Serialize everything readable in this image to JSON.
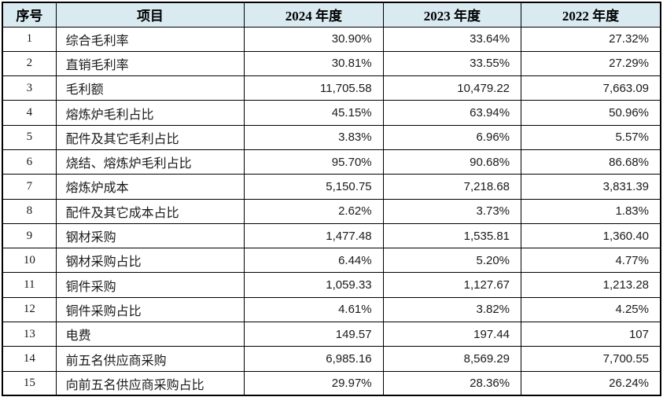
{
  "table": {
    "title_semantic": "margin-and-procurement-comparison-table",
    "headers": [
      {
        "label": "序号"
      },
      {
        "label": "项目"
      },
      {
        "label": "2024 年度"
      },
      {
        "label": "2023 年度"
      },
      {
        "label": "2022 年度"
      }
    ],
    "rows": [
      {
        "index": "1",
        "item": "综合毛利率",
        "y2024": "30.90%",
        "y2023": "33.64%",
        "y2022": "27.32%"
      },
      {
        "index": "2",
        "item": "直销毛利率",
        "y2024": "30.81%",
        "y2023": "33.55%",
        "y2022": "27.29%"
      },
      {
        "index": "3",
        "item": "毛利额",
        "y2024": "11,705.58",
        "y2023": "10,479.22",
        "y2022": "7,663.09"
      },
      {
        "index": "4",
        "item": "熔炼炉毛利占比",
        "y2024": "45.15%",
        "y2023": "63.94%",
        "y2022": "50.96%"
      },
      {
        "index": "5",
        "item": "配件及其它毛利占比",
        "y2024": "3.83%",
        "y2023": "6.96%",
        "y2022": "5.57%"
      },
      {
        "index": "6",
        "item": "烧结、熔炼炉毛利占比",
        "y2024": "95.70%",
        "y2023": "90.68%",
        "y2022": "86.68%"
      },
      {
        "index": "7",
        "item": "熔炼炉成本",
        "y2024": "5,150.75",
        "y2023": "7,218.68",
        "y2022": "3,831.39"
      },
      {
        "index": "8",
        "item": "配件及其它成本占比",
        "y2024": "2.62%",
        "y2023": "3.73%",
        "y2022": "1.83%"
      },
      {
        "index": "9",
        "item": "钢材采购",
        "y2024": "1,477.48",
        "y2023": "1,535.81",
        "y2022": "1,360.40"
      },
      {
        "index": "10",
        "item": "钢材采购占比",
        "y2024": "6.44%",
        "y2023": "5.20%",
        "y2022": "4.77%"
      },
      {
        "index": "11",
        "item": "铜件采购",
        "y2024": "1,059.33",
        "y2023": "1,127.67",
        "y2022": "1,213.28"
      },
      {
        "index": "12",
        "item": "铜件采购占比",
        "y2024": "4.61%",
        "y2023": "3.82%",
        "y2022": "4.25%"
      },
      {
        "index": "13",
        "item": "电费",
        "y2024": "149.57",
        "y2023": "197.44",
        "y2022": "107"
      },
      {
        "index": "14",
        "item": "前五名供应商采购",
        "y2024": "6,985.16",
        "y2023": "8,569.29",
        "y2022": "7,700.55"
      },
      {
        "index": "15",
        "item": "向前五名供应商采购占比",
        "y2024": "29.97%",
        "y2023": "28.36%",
        "y2022": "26.24%"
      }
    ],
    "colors": {
      "header_bg": "#d9eaf1",
      "border": "#000000",
      "text": "#1a1a1a",
      "background": "#ffffff"
    }
  }
}
